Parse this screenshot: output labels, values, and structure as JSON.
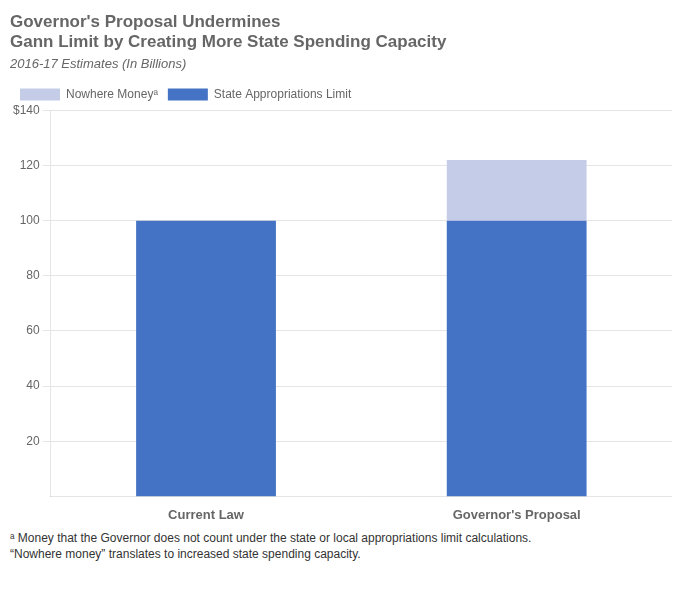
{
  "chart_data": {
    "type": "bar",
    "title": [
      "Governor's Proposal Undermines",
      "Gann Limit by Creating More State Spending Capacity"
    ],
    "subtitle": "2016-17 Estimates (In Billions)",
    "categories": [
      "Current Law",
      "Governor's Proposal"
    ],
    "series": [
      {
        "name": "State Appropriations Limit",
        "color": "#4472C4",
        "values": [
          100,
          100
        ]
      },
      {
        "name": "Nowhere Moneyᵃ",
        "color": "#c5cce8",
        "values": [
          0,
          22
        ]
      }
    ],
    "stacked": true,
    "ylim": [
      0,
      140
    ],
    "yticks": [
      20,
      40,
      60,
      80,
      100,
      120,
      {
        "value": 140,
        "label": "$140"
      }
    ],
    "grid": true,
    "legend": "upper left",
    "annotations": [
      "ᵃ Money that the Governor does not count under the state or local appropriations limit calculations.",
      "“Nowhere money” translates to increased state spending capacity."
    ]
  }
}
